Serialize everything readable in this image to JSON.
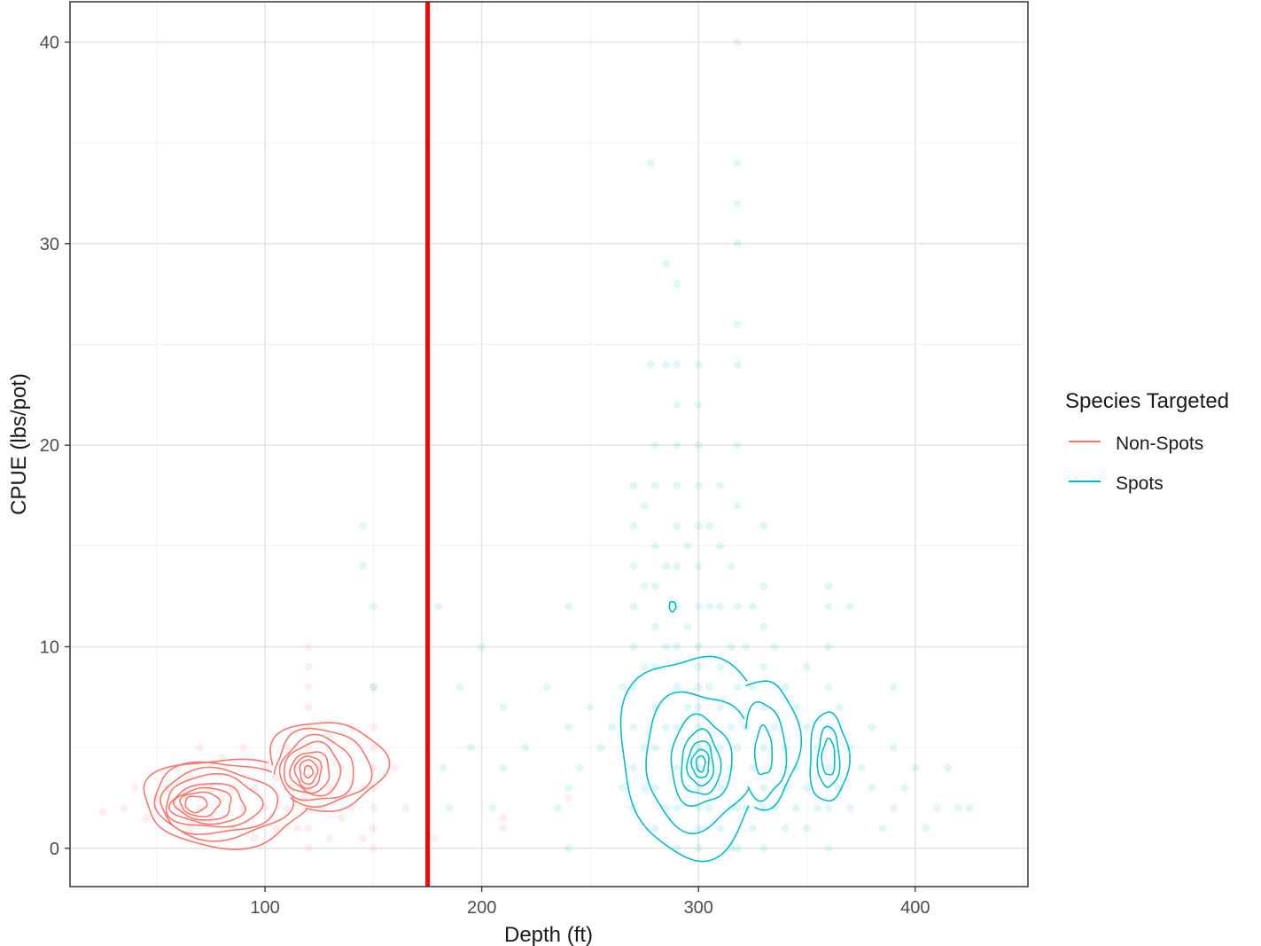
{
  "chart_data": {
    "type": "scatter",
    "title": "",
    "xlabel": "Depth (ft)",
    "ylabel": "CPUE (lbs/pot)",
    "xlim": [
      10,
      452
    ],
    "ylim": [
      -1.9,
      42
    ],
    "x_ticks": [
      100,
      200,
      300,
      400
    ],
    "y_ticks": [
      0,
      10,
      20,
      30,
      40
    ],
    "x_tick_labels": [
      "100",
      "200",
      "300",
      "400"
    ],
    "y_tick_labels": [
      "0",
      "10",
      "20",
      "30",
      "40"
    ],
    "grid": true,
    "legend": {
      "title": "Species Targeted",
      "placement": "right",
      "entries": [
        "Non-Spots",
        "Spots"
      ]
    },
    "reference_line": {
      "x": 175,
      "color": "#ff0000"
    },
    "colors": {
      "Non-Spots": "#f8766d",
      "Spots": "#00bfc4"
    },
    "series": [
      {
        "name": "Non-Spots",
        "color": "#f8766d",
        "points": [
          [
            25,
            1.8
          ],
          [
            35,
            2.0
          ],
          [
            40,
            3.0
          ],
          [
            45,
            1.5
          ],
          [
            50,
            2.5
          ],
          [
            55,
            3.0
          ],
          [
            60,
            2.0
          ],
          [
            60,
            4.0
          ],
          [
            65,
            1.0
          ],
          [
            65,
            3.5
          ],
          [
            70,
            2.0
          ],
          [
            70,
            5.0
          ],
          [
            75,
            1.5
          ],
          [
            75,
            3.0
          ],
          [
            80,
            2.5
          ],
          [
            80,
            4.5
          ],
          [
            85,
            1.0
          ],
          [
            85,
            3.0
          ],
          [
            90,
            2.0
          ],
          [
            90,
            5.0
          ],
          [
            95,
            0.5
          ],
          [
            95,
            3.0
          ],
          [
            100,
            2.0
          ],
          [
            100,
            4.0
          ],
          [
            105,
            1.0
          ],
          [
            105,
            3.5
          ],
          [
            110,
            2.0
          ],
          [
            110,
            5.0
          ],
          [
            112,
            3.0
          ],
          [
            115,
            1.0
          ],
          [
            115,
            4.0
          ],
          [
            118,
            2.5
          ],
          [
            120,
            0.0
          ],
          [
            120,
            1.0
          ],
          [
            120,
            2.0
          ],
          [
            120,
            3.0
          ],
          [
            120,
            4.0
          ],
          [
            120,
            5.0
          ],
          [
            120,
            6.0
          ],
          [
            120,
            7.0
          ],
          [
            120,
            8.0
          ],
          [
            120,
            9.0
          ],
          [
            120,
            10.0
          ],
          [
            125,
            2.0
          ],
          [
            125,
            4.0
          ],
          [
            130,
            0.5
          ],
          [
            130,
            3.0
          ],
          [
            130,
            5.5
          ],
          [
            135,
            1.5
          ],
          [
            135,
            4.0
          ],
          [
            140,
            2.0
          ],
          [
            140,
            6.0
          ],
          [
            145,
            0.5
          ],
          [
            145,
            3.0
          ],
          [
            150,
            0.0
          ],
          [
            150,
            1.0
          ],
          [
            150,
            2.0
          ],
          [
            150,
            3.0
          ],
          [
            150,
            4.0
          ],
          [
            150,
            5.0
          ],
          [
            150,
            6.0
          ],
          [
            150,
            8.0
          ],
          [
            160,
            4.0
          ],
          [
            165,
            2.0
          ],
          [
            178,
            0.5
          ],
          [
            210,
            1.0
          ],
          [
            210,
            1.5
          ],
          [
            240,
            2.5
          ]
        ],
        "contours": [
          [
            [
              82,
              2.3,
              38,
              2.2
            ],
            [
              128,
              4.1,
              27,
              2.2
            ]
          ],
          [
            [
              80,
              2.4,
              32,
              1.9
            ],
            [
              126,
              4.0,
              22,
              1.9
            ]
          ],
          [
            [
              78,
              2.3,
              27,
              1.6
            ],
            [
              124,
              3.9,
              17,
              1.6
            ]
          ],
          [
            [
              76,
              2.3,
              22,
              1.3
            ],
            [
              122,
              3.9,
              13,
              1.3
            ]
          ],
          [
            [
              74,
              2.2,
              17,
              1.0
            ],
            [
              121,
              3.8,
              9,
              1.0
            ]
          ],
          [
            [
              72,
              2.2,
              13,
              0.8
            ],
            [
              120,
              3.8,
              6,
              0.8
            ]
          ],
          [
            [
              70,
              2.2,
              9,
              0.6
            ],
            [
              120,
              3.8,
              4,
              0.6
            ]
          ],
          [
            [
              68,
              2.2,
              5,
              0.4
            ],
            [
              120,
              3.8,
              2,
              0.3
            ]
          ]
        ]
      },
      {
        "name": "Spots",
        "color": "#00bfc4",
        "points": [
          [
            145,
            14.0
          ],
          [
            145,
            16.0
          ],
          [
            150,
            12.0
          ],
          [
            150,
            8.0
          ],
          [
            180,
            12.0
          ],
          [
            182,
            4.0
          ],
          [
            185,
            2.0
          ],
          [
            190,
            8.0
          ],
          [
            195,
            5.0
          ],
          [
            200,
            10.0
          ],
          [
            205,
            2.0
          ],
          [
            210,
            7.0
          ],
          [
            210,
            4.0
          ],
          [
            220,
            5.0
          ],
          [
            230,
            8.0
          ],
          [
            235,
            2.0
          ],
          [
            240,
            12.0
          ],
          [
            240,
            6.0
          ],
          [
            240,
            3.0
          ],
          [
            240,
            0.0
          ],
          [
            245,
            4.0
          ],
          [
            250,
            7.0
          ],
          [
            255,
            5.0
          ],
          [
            260,
            6.0
          ],
          [
            265,
            8.0
          ],
          [
            265,
            3.0
          ],
          [
            270,
            2.0
          ],
          [
            270,
            4.0
          ],
          [
            270,
            6.0
          ],
          [
            270,
            8.0
          ],
          [
            270,
            10.0
          ],
          [
            270,
            12.0
          ],
          [
            270,
            14.0
          ],
          [
            270,
            16.0
          ],
          [
            270,
            18.0
          ],
          [
            275,
            3.0
          ],
          [
            275,
            5.0
          ],
          [
            275,
            9.0
          ],
          [
            275,
            13.0
          ],
          [
            275,
            17.0
          ],
          [
            278,
            24.0
          ],
          [
            278,
            34.0
          ],
          [
            280,
            1.0
          ],
          [
            280,
            3.0
          ],
          [
            280,
            5.0
          ],
          [
            280,
            7.0
          ],
          [
            280,
            9.0
          ],
          [
            280,
            11.0
          ],
          [
            280,
            13.0
          ],
          [
            280,
            15.0
          ],
          [
            280,
            18.0
          ],
          [
            280,
            20.0
          ],
          [
            285,
            2.0
          ],
          [
            285,
            6.0
          ],
          [
            285,
            10.0
          ],
          [
            285,
            14.0
          ],
          [
            285,
            24.0
          ],
          [
            285,
            29.0
          ],
          [
            290,
            0.0
          ],
          [
            290,
            2.0
          ],
          [
            290,
            4.0
          ],
          [
            290,
            6.0
          ],
          [
            290,
            8.0
          ],
          [
            290,
            10.0
          ],
          [
            290,
            12.0
          ],
          [
            290,
            14.0
          ],
          [
            290,
            16.0
          ],
          [
            290,
            18.0
          ],
          [
            290,
            20.0
          ],
          [
            290,
            22.0
          ],
          [
            290,
            24.0
          ],
          [
            290,
            28.0
          ],
          [
            295,
            3.0
          ],
          [
            295,
            7.0
          ],
          [
            295,
            11.0
          ],
          [
            295,
            15.0
          ],
          [
            300,
            0.0
          ],
          [
            300,
            1.0
          ],
          [
            300,
            2.0
          ],
          [
            300,
            3.0
          ],
          [
            300,
            4.0
          ],
          [
            300,
            5.0
          ],
          [
            300,
            6.0
          ],
          [
            300,
            7.0
          ],
          [
            300,
            8.0
          ],
          [
            300,
            9.0
          ],
          [
            300,
            10.0
          ],
          [
            300,
            12.0
          ],
          [
            300,
            14.0
          ],
          [
            300,
            16.0
          ],
          [
            300,
            18.0
          ],
          [
            300,
            20.0
          ],
          [
            300,
            22.0
          ],
          [
            300,
            24.0
          ],
          [
            305,
            2.0
          ],
          [
            305,
            5.0
          ],
          [
            305,
            8.0
          ],
          [
            305,
            12.0
          ],
          [
            305,
            16.0
          ],
          [
            310,
            1.0
          ],
          [
            310,
            3.0
          ],
          [
            310,
            5.0
          ],
          [
            310,
            7.0
          ],
          [
            310,
            9.0
          ],
          [
            310,
            12.0
          ],
          [
            310,
            15.0
          ],
          [
            310,
            18.0
          ],
          [
            315,
            0.0
          ],
          [
            315,
            2.0
          ],
          [
            315,
            4.0
          ],
          [
            315,
            6.0
          ],
          [
            315,
            10.0
          ],
          [
            315,
            14.0
          ],
          [
            318,
            0.0
          ],
          [
            318,
            2.0
          ],
          [
            318,
            5.0
          ],
          [
            318,
            8.0
          ],
          [
            318,
            12.0
          ],
          [
            318,
            17.0
          ],
          [
            318,
            20.0
          ],
          [
            318,
            24.0
          ],
          [
            318,
            26.0
          ],
          [
            318,
            30.0
          ],
          [
            318,
            32.0
          ],
          [
            318,
            34.0
          ],
          [
            318,
            40.0
          ],
          [
            322,
            2.0
          ],
          [
            322,
            6.0
          ],
          [
            322,
            10.0
          ],
          [
            325,
            1.0
          ],
          [
            325,
            4.0
          ],
          [
            325,
            8.0
          ],
          [
            325,
            12.0
          ],
          [
            330,
            0.0
          ],
          [
            330,
            2.0
          ],
          [
            330,
            3.0
          ],
          [
            330,
            5.0
          ],
          [
            330,
            7.0
          ],
          [
            330,
            9.0
          ],
          [
            330,
            11.0
          ],
          [
            330,
            13.0
          ],
          [
            330,
            16.0
          ],
          [
            335,
            2.0
          ],
          [
            335,
            6.0
          ],
          [
            335,
            10.0
          ],
          [
            340,
            1.0
          ],
          [
            340,
            3.0
          ],
          [
            340,
            5.0
          ],
          [
            340,
            8.0
          ],
          [
            345,
            2.0
          ],
          [
            345,
            4.0
          ],
          [
            345,
            7.0
          ],
          [
            350,
            1.0
          ],
          [
            350,
            3.0
          ],
          [
            350,
            6.0
          ],
          [
            350,
            9.0
          ],
          [
            355,
            2.0
          ],
          [
            355,
            5.0
          ],
          [
            360,
            0.0
          ],
          [
            360,
            2.0
          ],
          [
            360,
            4.0
          ],
          [
            360,
            6.0
          ],
          [
            360,
            8.0
          ],
          [
            360,
            10.0
          ],
          [
            360,
            12.0
          ],
          [
            360,
            13.0
          ],
          [
            365,
            3.0
          ],
          [
            365,
            7.0
          ],
          [
            370,
            2.0
          ],
          [
            370,
            5.0
          ],
          [
            370,
            12.0
          ],
          [
            375,
            4.0
          ],
          [
            380,
            3.0
          ],
          [
            380,
            6.0
          ],
          [
            385,
            1.0
          ],
          [
            390,
            2.0
          ],
          [
            390,
            5.0
          ],
          [
            390,
            8.0
          ],
          [
            395,
            3.0
          ],
          [
            400,
            4.0
          ],
          [
            405,
            1.0
          ],
          [
            410,
            2.0
          ],
          [
            415,
            4.0
          ],
          [
            420,
            2.0
          ],
          [
            425,
            2.0
          ]
        ],
        "contours": [
          [
            [
              298,
              4.7,
              34,
              5.0
            ],
            [
              330,
              5.2,
              16,
              3.2
            ],
            [
              360,
              4.5,
              9,
              2.2
            ]
          ],
          [
            [
              300,
              4.4,
              25,
              3.4
            ],
            [
              330,
              4.8,
              10,
              2.4
            ],
            [
              360,
              4.5,
              5,
              1.5
            ]
          ],
          [
            [
              301,
              4.3,
              14,
              2.2
            ],
            [
              330,
              4.8,
              4,
              1.2
            ],
            [
              360,
              4.5,
              3,
              0.9
            ]
          ],
          [
            [
              301,
              4.2,
              9,
              1.6
            ]
          ],
          [
            [
              301,
              4.2,
              6,
              1.1
            ]
          ],
          [
            [
              301,
              4.2,
              4,
              0.7
            ]
          ],
          [
            [
              301,
              4.2,
              2,
              0.4
            ]
          ],
          [
            [
              288,
              12.0,
              1.5,
              0.25
            ]
          ]
        ]
      }
    ]
  }
}
